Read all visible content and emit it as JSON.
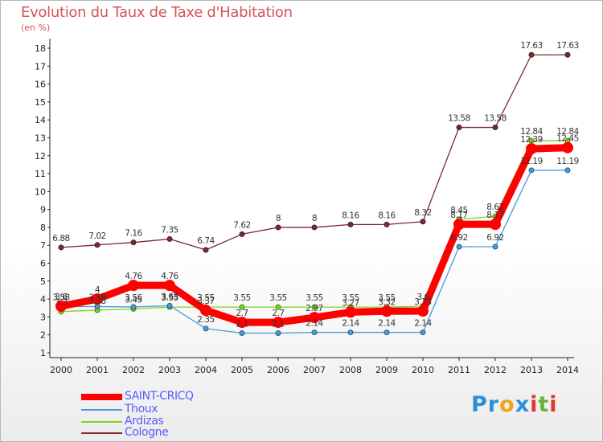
{
  "chart_title": "Evolution du Taux de Taxe d'Habitation",
  "unit_label": "(en %)",
  "logo": {
    "letters": [
      "P",
      "r",
      "o",
      "x",
      "i",
      "t",
      "i"
    ],
    "colors": [
      "#2b8fd8",
      "#2b8fd8",
      "#f3a21b",
      "#2b8fd8",
      "#e0352b",
      "#6ab23a",
      "#e0352b"
    ]
  },
  "chart_data": {
    "type": "line",
    "title": "Evolution du Taux de Taxe d'Habitation",
    "ylabel": "(en %)",
    "ylim": [
      1,
      18
    ],
    "yticks": [
      "1",
      "2",
      "3",
      "4",
      "5",
      "6",
      "7",
      "8",
      "9",
      "10",
      "11",
      "12",
      "13",
      "14",
      "15",
      "16",
      "17",
      "18"
    ],
    "grid": false,
    "legend_position": "bottom-left",
    "x": [
      "2000",
      "2001",
      "2002",
      "2003",
      "2004",
      "2005",
      "2006",
      "2007",
      "2008",
      "2009",
      "2010",
      "2011",
      "2012",
      "2013",
      "2014"
    ],
    "series": [
      {
        "name": "SAINT-CRICQ",
        "color": "#ff0000",
        "values": [
          3.6,
          4.0,
          4.76,
          4.76,
          3.37,
          2.7,
          2.7,
          2.97,
          3.27,
          3.32,
          3.33,
          8.17,
          8.17,
          12.39,
          12.45
        ],
        "labels": [
          "3.6",
          "4",
          "4.76",
          "4.76",
          "3.37",
          "2.7",
          "2.7",
          "2.97",
          "3.27",
          "3.32",
          "3.33",
          "8.17",
          "8.17",
          "12.39",
          "12.45"
        ]
      },
      {
        "name": "Thoux",
        "color": "#4a9ad8",
        "values": [
          3.58,
          3.58,
          3.56,
          3.63,
          2.35,
          2.1,
          2.1,
          2.14,
          2.14,
          2.14,
          2.14,
          6.92,
          6.92,
          11.19,
          11.19
        ],
        "labels": [
          "3.58",
          "3.58",
          "3.56",
          "3.63",
          "2.35",
          "2.1",
          "2.1",
          "2.14",
          "2.14",
          "2.14",
          "2.14",
          "6.92",
          "6.92",
          "11.19",
          "11.19"
        ]
      },
      {
        "name": "Ardizas",
        "color": "#7ed321",
        "values": [
          3.3,
          3.38,
          3.45,
          3.55,
          3.55,
          3.55,
          3.55,
          3.55,
          3.55,
          3.55,
          3.6,
          8.45,
          8.62,
          12.84,
          12.84
        ],
        "labels": [
          "3.3",
          "3.38",
          "3.45",
          "3.55",
          "3.55",
          "3.55",
          "3.55",
          "3.55",
          "3.55",
          "3.55",
          "3.6",
          "8.45",
          "8.62",
          "12.84",
          "12.84"
        ]
      },
      {
        "name": "Cologne",
        "color": "#7b2a32",
        "values": [
          6.88,
          7.02,
          7.16,
          7.35,
          6.74,
          7.62,
          8.0,
          8.0,
          8.16,
          8.16,
          8.32,
          13.58,
          13.58,
          17.63,
          17.63
        ],
        "labels": [
          "6.88",
          "7.02",
          "7.16",
          "7.35",
          "6.74",
          "7.62",
          "8",
          "8",
          "8.16",
          "8.16",
          "8.32",
          "13.58",
          "13.58",
          "17.63",
          "17.63"
        ]
      }
    ]
  }
}
